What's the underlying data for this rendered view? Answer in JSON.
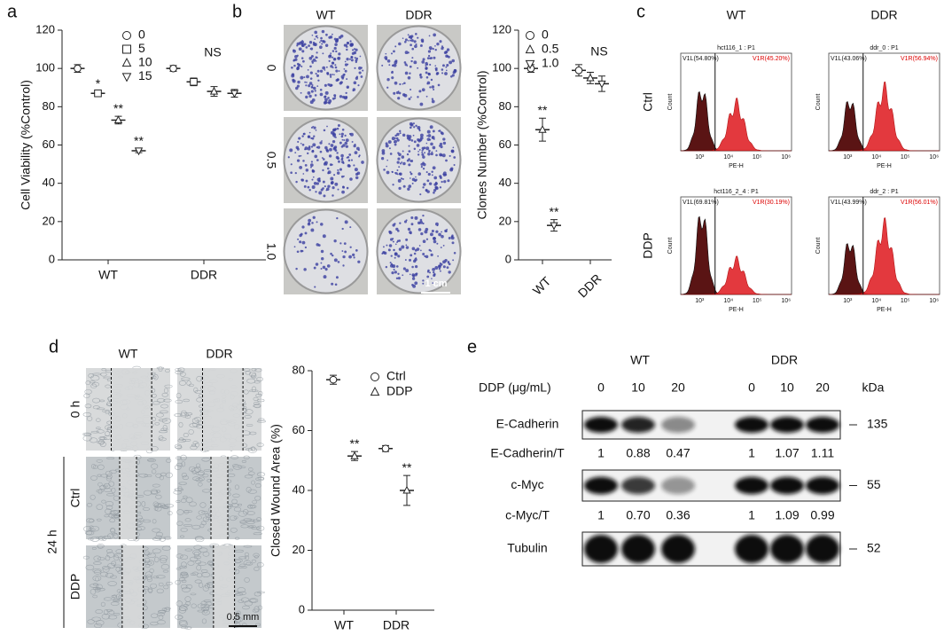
{
  "panel_labels": [
    "a",
    "b",
    "c",
    "d",
    "e"
  ],
  "chart_data": [
    {
      "type": "dot",
      "y_label": "Cell Viability (%Control)",
      "categories": [
        "WT",
        "DDR"
      ],
      "color": "#222222",
      "ylim": [
        0,
        120
      ],
      "yticks": [
        0,
        20,
        40,
        60,
        80,
        100,
        120
      ],
      "series": [
        {
          "name": "0",
          "marker": "circle",
          "values": [
            100,
            100
          ],
          "errors": [
            2,
            1.5
          ],
          "significance": [
            null,
            null
          ]
        },
        {
          "name": "5",
          "marker": "square",
          "values": [
            87,
            93
          ],
          "errors": [
            1,
            2
          ],
          "significance": [
            "*",
            null
          ]
        },
        {
          "name": "10",
          "marker": "triangle",
          "values": [
            73,
            88
          ],
          "errors": [
            2,
            2.5
          ],
          "significance": [
            "**",
            null
          ]
        },
        {
          "name": "15",
          "marker": "triangle-down",
          "values": [
            57,
            87
          ],
          "errors": [
            1,
            2
          ],
          "significance": [
            "**",
            null
          ]
        }
      ],
      "annotations": [
        "NS"
      ]
    },
    {
      "type": "dot",
      "y_label": "Clones Number (%Control)",
      "categories": [
        "WT",
        "DDR"
      ],
      "color": "#222222",
      "ylim": [
        0,
        120
      ],
      "yticks": [
        0,
        20,
        40,
        60,
        80,
        100,
        120
      ],
      "series": [
        {
          "name": "0",
          "marker": "circle",
          "values": [
            100,
            99
          ],
          "errors": [
            2,
            3
          ],
          "significance": [
            null,
            null
          ]
        },
        {
          "name": "0.5",
          "marker": "triangle",
          "values": [
            68,
            95
          ],
          "errors": [
            6,
            3
          ],
          "significance": [
            "**",
            null
          ]
        },
        {
          "name": "1.0",
          "marker": "triangle-down",
          "values": [
            18,
            92
          ],
          "errors": [
            3,
            4
          ],
          "significance": [
            "**",
            null
          ]
        }
      ],
      "annotations": [
        "NS"
      ]
    },
    {
      "type": "dot",
      "y_label": "Closed Wound Area (%)",
      "categories": [
        "WT",
        "DDR"
      ],
      "color": "#222222",
      "ylim": [
        0,
        80
      ],
      "yticks": [
        0,
        20,
        40,
        60,
        80
      ],
      "series": [
        {
          "name": "Ctrl",
          "marker": "circle",
          "values": [
            77,
            54
          ],
          "errors": [
            1.5,
            1
          ],
          "significance": [
            null,
            null
          ]
        },
        {
          "name": "DDP",
          "marker": "triangle",
          "values": [
            51.5,
            40
          ],
          "errors": [
            1.5,
            5
          ],
          "significance": [
            "**",
            "**"
          ]
        }
      ]
    }
  ],
  "colony_photos": {
    "columns": [
      "WT",
      "DDR"
    ],
    "rows": [
      "0",
      "0.5",
      "1.0"
    ],
    "scale_bar": "1 cm"
  },
  "flow_cytometry": {
    "columns": [
      "WT",
      "DDR"
    ],
    "rows": [
      "Ctrl",
      "DDP"
    ],
    "x_label": "PE-H",
    "y_label": "Count",
    "x_ticks": [
      "10³",
      "10⁴",
      "10⁵",
      "10⁶"
    ],
    "plots": [
      {
        "title": "hct116_1 : P1",
        "left_gate": "V1L(54.80%)",
        "right_gate": "V1R(45.20%)"
      },
      {
        "title": "ddr_0 : P1",
        "left_gate": "V1L(43.06%)",
        "right_gate": "V1R(56.94%)"
      },
      {
        "title": "hct116_2_4 : P1",
        "left_gate": "V1L(69.81%)",
        "right_gate": "V1R(30.19%)"
      },
      {
        "title": "ddr_2 : P1",
        "left_gate": "V1L(43.99%)",
        "right_gate": "V1R(56.01%)"
      }
    ]
  },
  "wound_photos": {
    "columns": [
      "WT",
      "DDR"
    ],
    "rows": [
      "0 h",
      "Ctrl",
      "DDP"
    ],
    "group_label": "24 h",
    "scale_bar": "0.5 mm"
  },
  "western_blot": {
    "groups": [
      "WT",
      "DDR"
    ],
    "dose_label": "DDP (μg/mL)",
    "doses": [
      "0",
      "10",
      "20",
      "0",
      "10",
      "20"
    ],
    "unit_label": "kDa",
    "blots": [
      {
        "name": "E-Cadherin",
        "kda": "135"
      },
      {
        "name": "c-Myc",
        "kda": "55"
      },
      {
        "name": "Tubulin",
        "kda": "52"
      }
    ],
    "ratios": [
      {
        "name": "E-Cadherin/T",
        "values": [
          "1",
          "0.88",
          "0.47",
          "1",
          "1.07",
          "1.11"
        ]
      },
      {
        "name": "c-Myc/T",
        "values": [
          "1",
          "0.70",
          "0.36",
          "1",
          "1.09",
          "0.99"
        ]
      }
    ]
  }
}
